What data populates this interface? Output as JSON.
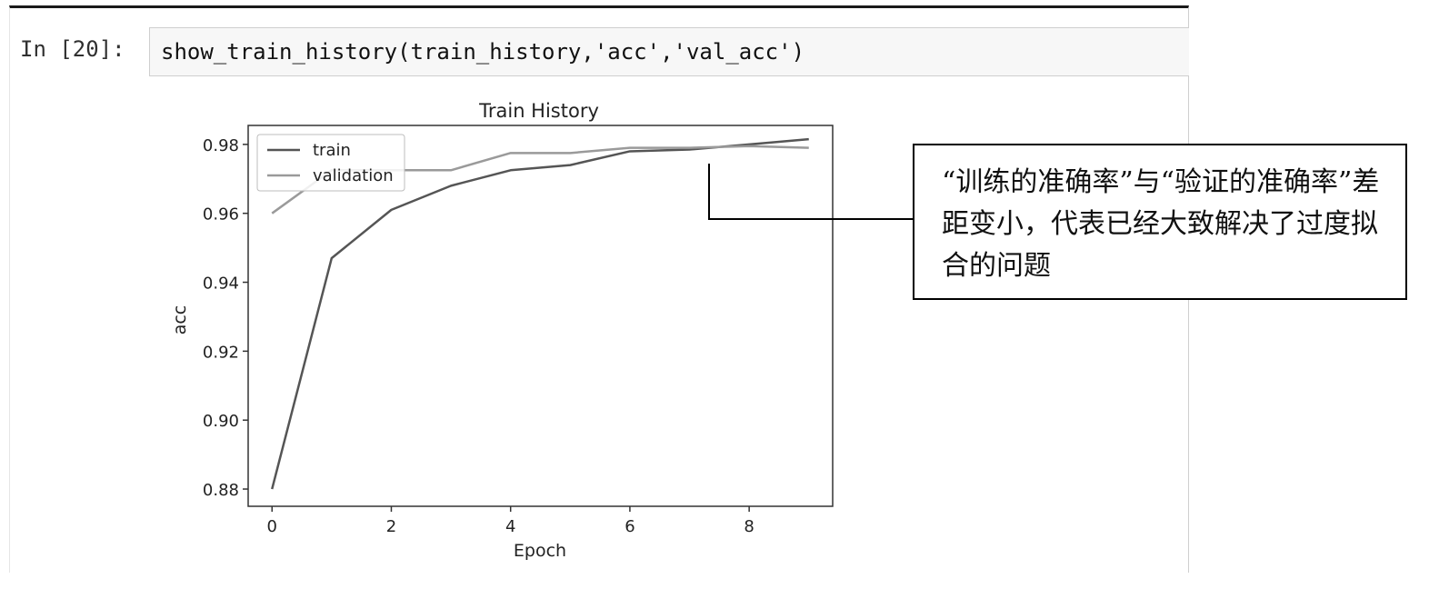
{
  "cell": {
    "prompt": "In [20]:",
    "code": "show_train_history(train_history,'acc','val_acc')"
  },
  "chart_data": {
    "type": "line",
    "title": "Train History",
    "xlabel": "Epoch",
    "ylabel": "acc",
    "xlim": [
      -0.4,
      9.4
    ],
    "ylim": [
      0.875,
      0.9855
    ],
    "xticks": [
      0,
      2,
      4,
      6,
      8
    ],
    "yticks": [
      0.88,
      0.9,
      0.92,
      0.94,
      0.96,
      0.98
    ],
    "ytick_labels": [
      "0.88",
      "0.90",
      "0.92",
      "0.94",
      "0.96",
      "0.98"
    ],
    "legend_position": "top-left",
    "grid": false,
    "x": [
      0,
      1,
      2,
      3,
      4,
      5,
      6,
      7,
      8,
      9
    ],
    "series": [
      {
        "name": "train",
        "color": "#555555",
        "values": [
          0.88,
          0.947,
          0.961,
          0.968,
          0.9725,
          0.974,
          0.978,
          0.9785,
          0.98,
          0.9815
        ]
      },
      {
        "name": "validation",
        "color": "#9a9a9a",
        "values": [
          0.96,
          0.9725,
          0.9725,
          0.9725,
          0.9775,
          0.9775,
          0.979,
          0.979,
          0.9795,
          0.979
        ]
      }
    ]
  },
  "annotation": {
    "text": "“训练的准确率”与“验证的准确率”差距变小，代表已经大致解决了过度拟合的问题"
  }
}
